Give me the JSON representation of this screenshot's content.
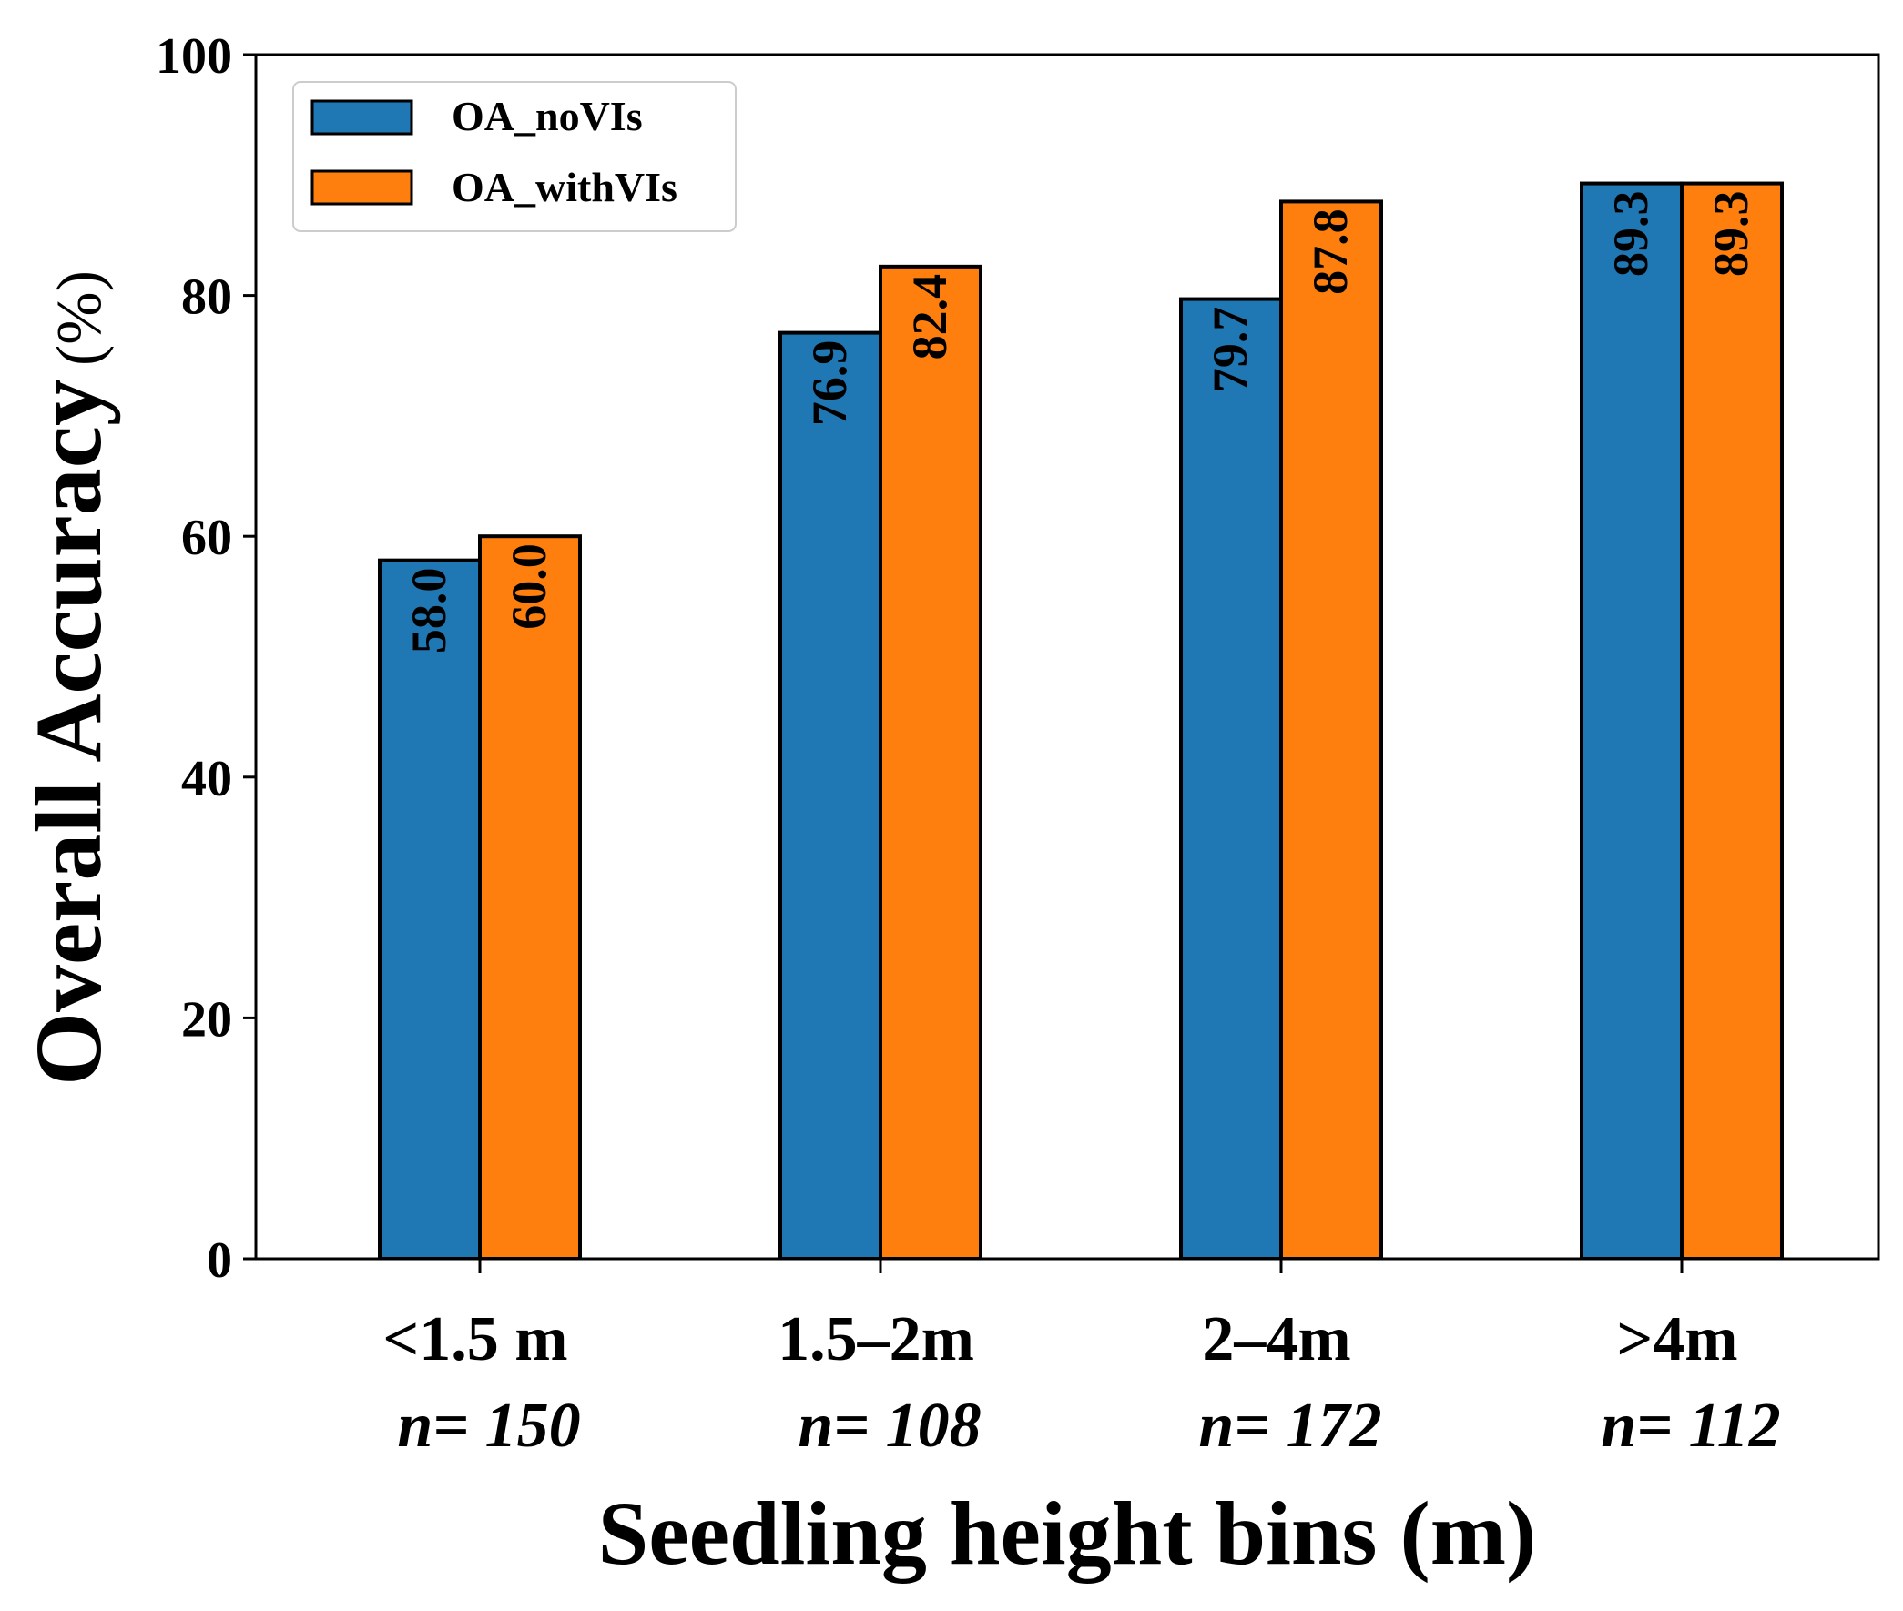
{
  "chart_data": {
    "type": "bar",
    "title": "",
    "xlabel": "Seedling height bins (m)",
    "ylabel_main": "Overall Accuracy",
    "ylabel_unit": "(%)",
    "ylim": [
      0,
      100
    ],
    "yticks": [
      0,
      20,
      40,
      60,
      80,
      100
    ],
    "categories": [
      {
        "label": "<1.5 m",
        "n": "n= 150"
      },
      {
        "label": "1.5–2m",
        "n": "n= 108"
      },
      {
        "label": "2–4m",
        "n": "n= 172"
      },
      {
        "label": ">4m",
        "n": "n= 112"
      }
    ],
    "series": [
      {
        "name": "OA_noVIs",
        "color": "#1f77b4",
        "values": [
          58.0,
          76.9,
          79.7,
          89.3
        ],
        "labels": [
          "58.0",
          "76.9",
          "79.7",
          "89.3"
        ]
      },
      {
        "name": "OA_withVIs",
        "color": "#ff7f0e",
        "values": [
          60.0,
          82.4,
          87.8,
          89.3
        ],
        "labels": [
          "60.0",
          "82.4",
          "87.8",
          "89.3"
        ]
      }
    ],
    "legend_position": "top-left",
    "grid": false
  }
}
